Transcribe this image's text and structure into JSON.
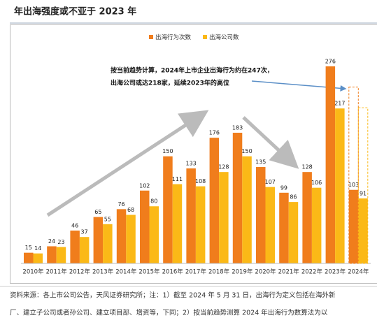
{
  "title": "年出海强度或不亚于 2023 年",
  "chart_data": {
    "type": "bar",
    "categories": [
      "2010年",
      "2011年",
      "2012年",
      "2013年",
      "2014年",
      "2015年",
      "2016年",
      "2017年",
      "2018年",
      "2019年",
      "2020年",
      "2021年",
      "2022年",
      "2023年",
      "2024年"
    ],
    "series": [
      {
        "name": "出海行为次数",
        "color": "#f07d1c",
        "values": [
          15,
          24,
          46,
          65,
          76,
          102,
          150,
          133,
          176,
          183,
          135,
          99,
          128,
          276,
          103
        ]
      },
      {
        "name": "出海公司数",
        "color": "#fbb917",
        "values": [
          14,
          23,
          37,
          55,
          68,
          80,
          111,
          108,
          128,
          150,
          107,
          86,
          106,
          217,
          91
        ]
      }
    ],
    "projection_values": [
      247,
      218
    ],
    "annotation": "按当前趋势计算，2024年上市企业出海行为约在247次，出海公司或达218家，延续2023年的高位",
    "legend": "top"
  },
  "footer": [
    "资料来源：各上市公司公告，天风证券研究所；注：1）截至 2024 年 5 月 31 日，出海行为定义包括在海外新",
    "厂、建立子公司或者孙公司、建立项目部、增资等，下同；2）按当前趋势测算 2024 年出海行为数算法为以"
  ]
}
